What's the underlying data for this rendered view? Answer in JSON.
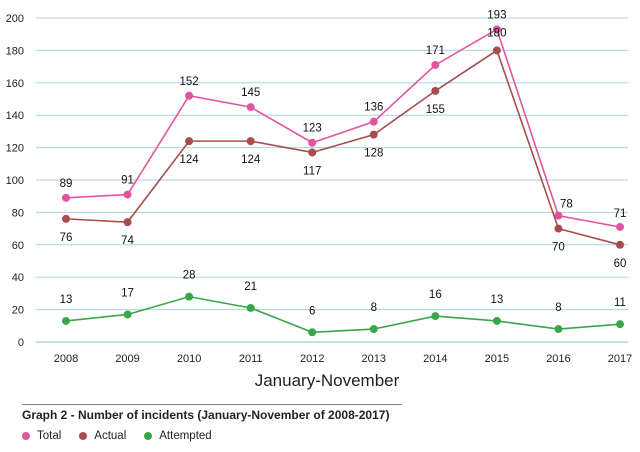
{
  "chart_data": {
    "type": "line",
    "x": [
      "2008",
      "2009",
      "2010",
      "2011",
      "2012",
      "2013",
      "2014",
      "2015",
      "2016",
      "2017"
    ],
    "xlabel": "January-November",
    "ylabel": "",
    "ylim": [
      0,
      200
    ],
    "yticks": [
      0,
      20,
      40,
      60,
      80,
      100,
      120,
      140,
      160,
      180,
      200
    ],
    "grid": "horizontal",
    "series": [
      {
        "name": "Total",
        "color": "#e0559f",
        "values": [
          89,
          91,
          152,
          145,
          123,
          136,
          171,
          193,
          78,
          71
        ]
      },
      {
        "name": "Actual",
        "color": "#a64e4e",
        "values": [
          76,
          74,
          124,
          124,
          117,
          128,
          155,
          180,
          70,
          60
        ]
      },
      {
        "name": "Attempted",
        "color": "#3aa64a",
        "values": [
          13,
          17,
          28,
          21,
          6,
          8,
          16,
          13,
          8,
          11
        ]
      }
    ]
  },
  "caption": "Graph 2 - Number of incidents (January-November of 2008-2017)",
  "legend": [
    {
      "label": "Total",
      "color": "#e0559f"
    },
    {
      "label": "Actual",
      "color": "#a64e4e"
    },
    {
      "label": "Attempted",
      "color": "#3aa64a"
    }
  ]
}
